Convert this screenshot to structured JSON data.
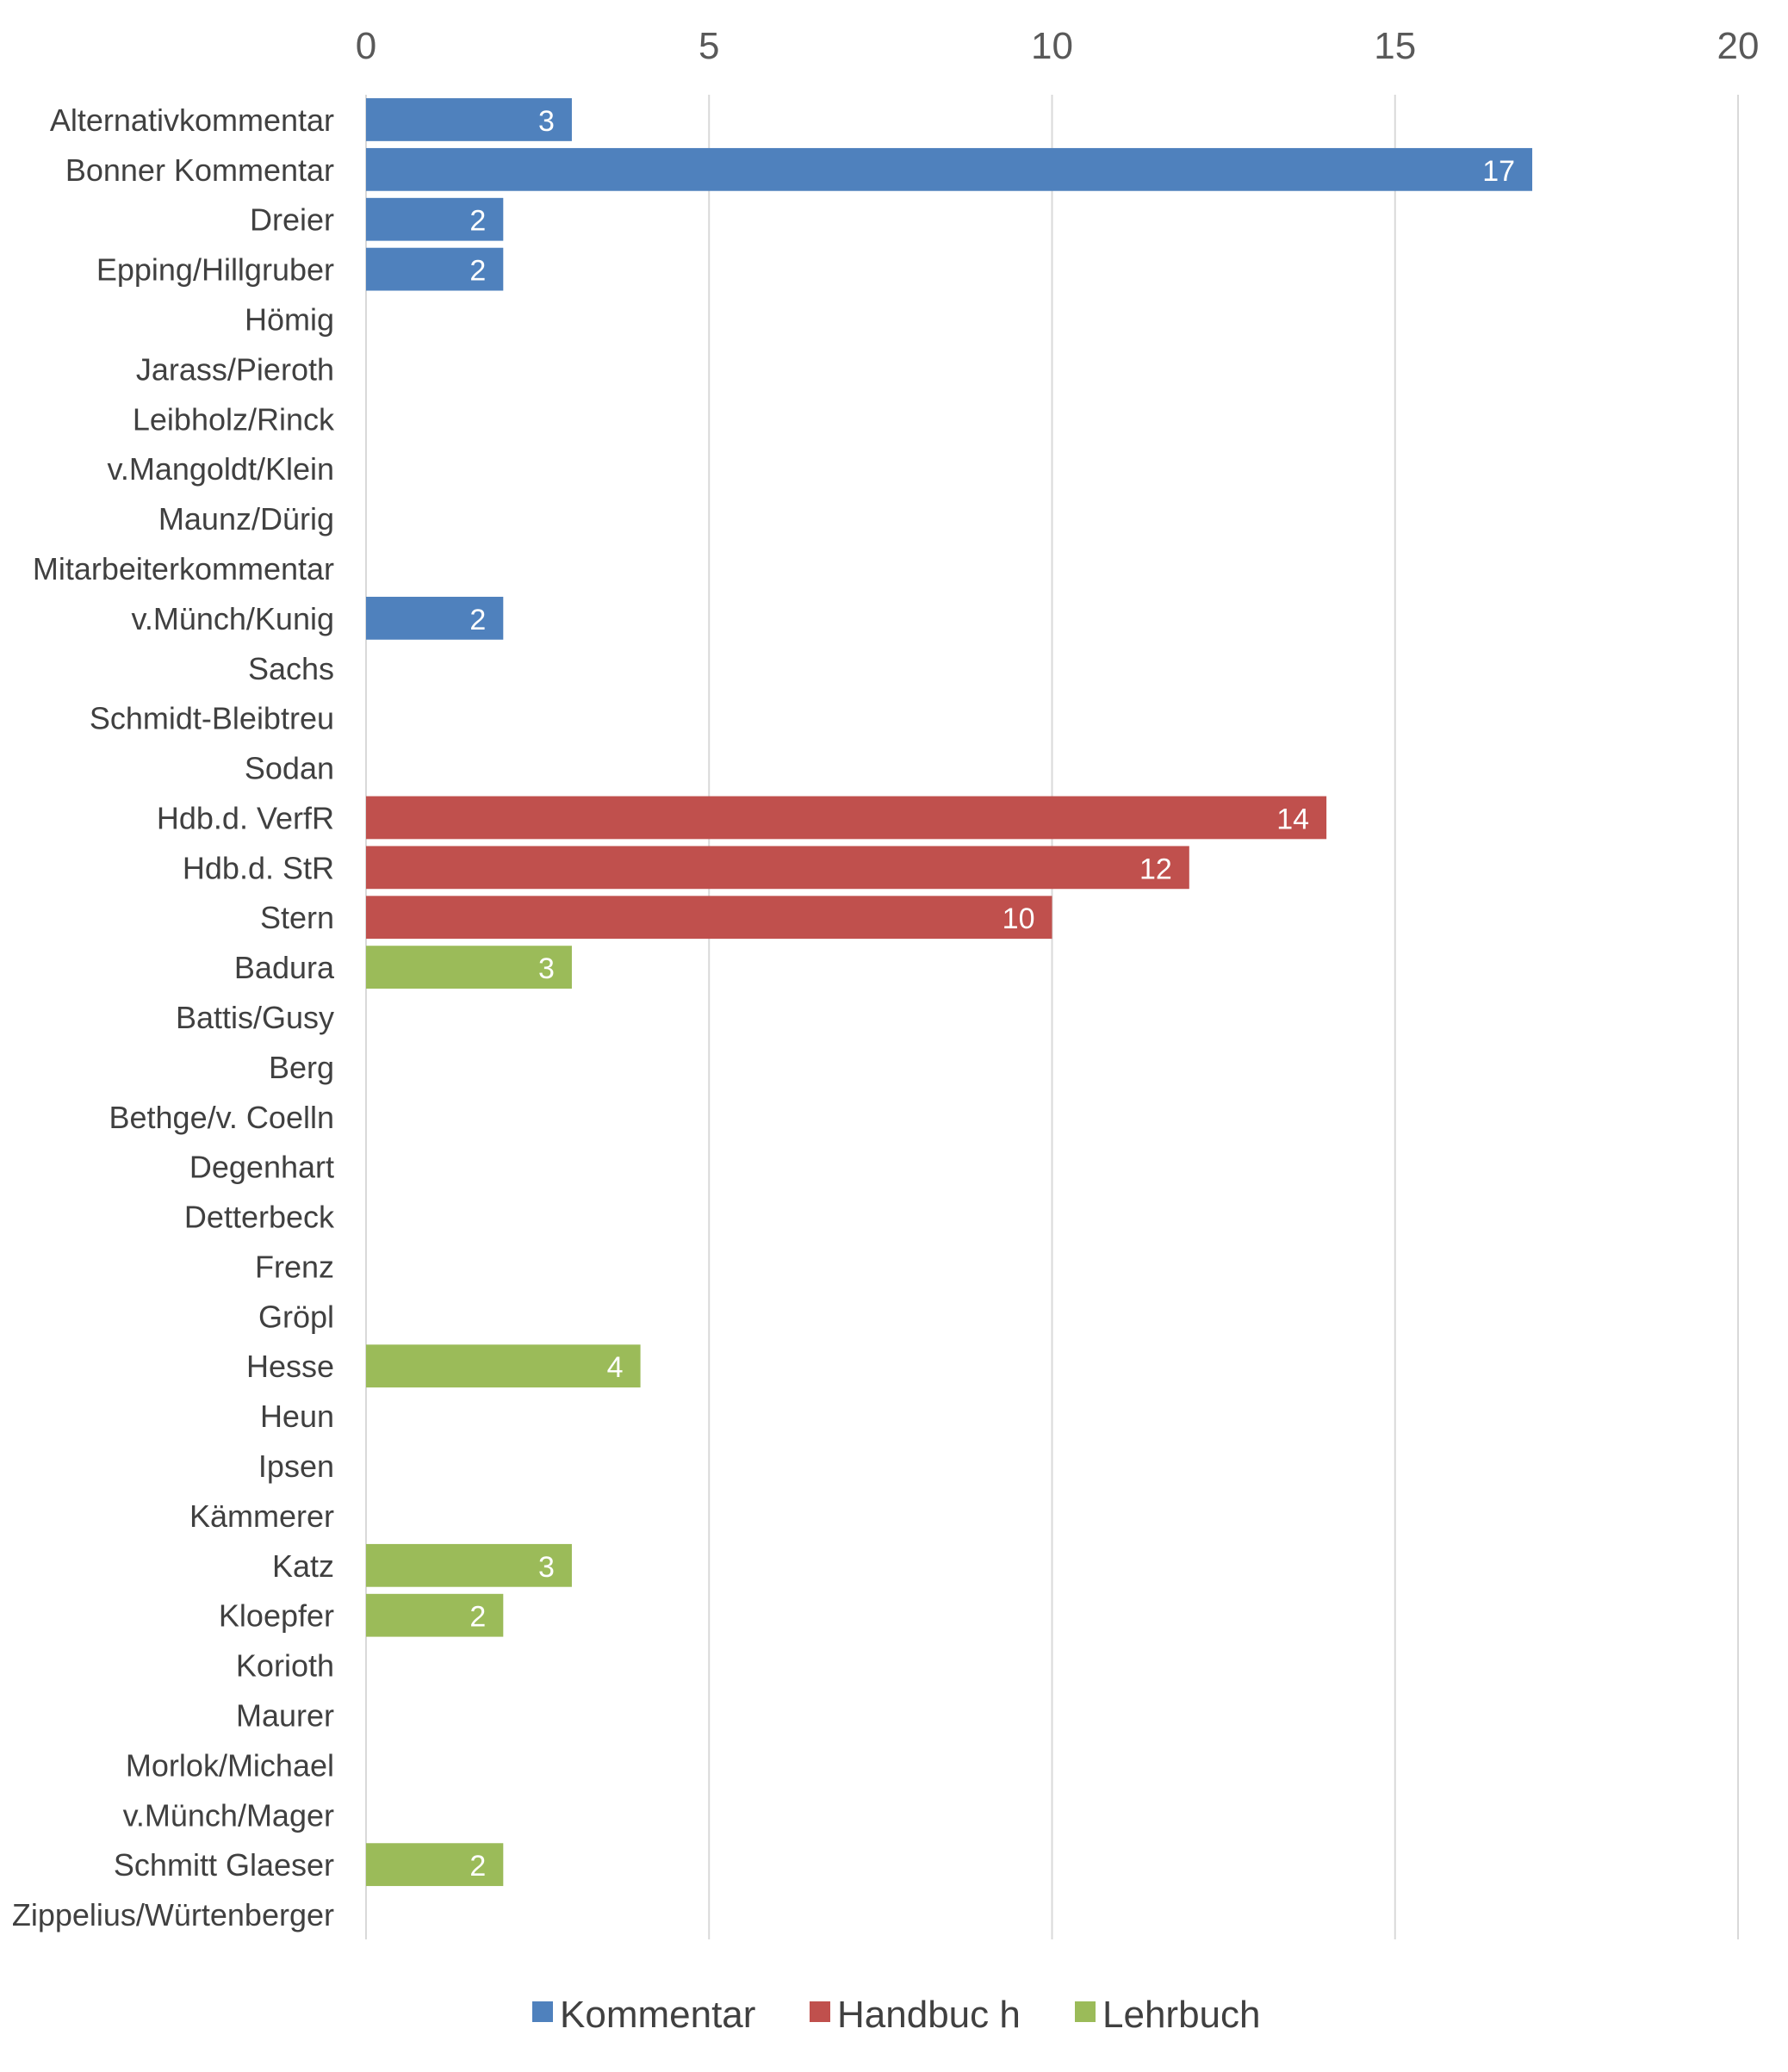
{
  "chart_data": {
    "type": "bar",
    "orientation": "horizontal",
    "title": "",
    "xlabel": "",
    "ylabel": "",
    "xlim": [
      0,
      20
    ],
    "xticks": [
      0,
      5,
      10,
      15,
      20
    ],
    "grid": true,
    "legend_position": "bottom",
    "categories": [
      "Alternativkommentar",
      "Bonner Kommentar",
      "Dreier",
      "Epping/Hillgruber",
      "Hömig",
      "Jarass/Pieroth",
      "Leibholz/Rinck",
      "v.Mangoldt/Klein",
      "Maunz/Dürig",
      "Mitarbeiterkommentar",
      "v.Münch/Kunig",
      "Sachs",
      "Schmidt-Bleibtreu",
      "Sodan",
      "Hdb.d. VerfR",
      "Hdb.d. StR",
      "Stern",
      "Badura",
      "Battis/Gusy",
      "Berg",
      "Bethge/v. Coelln",
      "Degenhart",
      "Detterbeck",
      "Frenz",
      "Gröpl",
      "Hesse",
      "Heun",
      "Ipsen",
      "Kämmerer",
      "Katz",
      "Kloepfer",
      "Korioth",
      "Maurer",
      "Morlok/Michael",
      "v.Münch/Mager",
      "Schmitt Glaeser",
      "Zippelius/Würtenberger"
    ],
    "series": [
      {
        "name": "Kommentar",
        "color": "#4f81bd",
        "values": [
          3,
          17,
          2,
          2,
          0,
          0,
          0,
          0,
          0,
          0,
          2,
          0,
          0,
          0,
          null,
          null,
          null,
          null,
          null,
          null,
          null,
          null,
          null,
          null,
          null,
          null,
          null,
          null,
          null,
          null,
          null,
          null,
          null,
          null,
          null,
          null,
          null
        ]
      },
      {
        "name": "Handbuc h",
        "color": "#c0504d",
        "values": [
          null,
          null,
          null,
          null,
          null,
          null,
          null,
          null,
          null,
          null,
          null,
          null,
          null,
          null,
          14,
          12,
          10,
          null,
          null,
          null,
          null,
          null,
          null,
          null,
          null,
          null,
          null,
          null,
          null,
          null,
          null,
          null,
          null,
          null,
          null,
          null,
          null
        ]
      },
      {
        "name": "Lehrbuch",
        "color": "#9bbb59",
        "values": [
          null,
          null,
          null,
          null,
          null,
          null,
          null,
          null,
          null,
          null,
          null,
          null,
          null,
          null,
          null,
          null,
          null,
          3,
          0,
          0,
          0,
          0,
          0,
          0,
          0,
          4,
          0,
          0,
          0,
          3,
          2,
          0,
          0,
          0,
          0,
          2,
          0
        ]
      }
    ]
  }
}
